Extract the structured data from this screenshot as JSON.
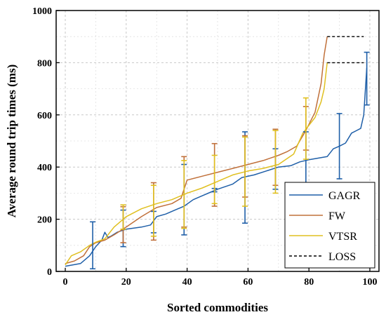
{
  "chart_data": {
    "type": "line",
    "title": "",
    "xlabel": "Sorted commodities",
    "ylabel": "Average round trip times (ms)",
    "xlim": [
      -3,
      103
    ],
    "ylim": [
      0,
      1000
    ],
    "xticks": [
      "0",
      "20",
      "40",
      "60",
      "80",
      "100"
    ],
    "xtick_values": [
      0,
      20,
      40,
      60,
      80,
      100
    ],
    "yticks": [
      "0",
      "200",
      "400",
      "600",
      "800",
      "1000"
    ],
    "ytick_values": [
      0,
      200,
      400,
      600,
      800,
      1000
    ],
    "grid": true,
    "legend_position": "bottom-right",
    "series": [
      {
        "name": "GAGR",
        "color": "#1f5fa8",
        "points": [
          [
            0,
            20
          ],
          [
            5,
            30
          ],
          [
            8,
            60
          ],
          [
            10,
            95
          ],
          [
            12,
            120
          ],
          [
            13,
            150
          ],
          [
            14,
            130
          ],
          [
            15,
            135
          ],
          [
            17,
            150
          ],
          [
            20,
            162
          ],
          [
            25,
            170
          ],
          [
            28,
            178
          ],
          [
            30,
            210
          ],
          [
            33,
            220
          ],
          [
            36,
            235
          ],
          [
            39,
            250
          ],
          [
            42,
            275
          ],
          [
            45,
            290
          ],
          [
            48,
            305
          ],
          [
            50,
            315
          ],
          [
            55,
            335
          ],
          [
            58,
            360
          ],
          [
            62,
            370
          ],
          [
            66,
            385
          ],
          [
            70,
            400
          ],
          [
            74,
            405
          ],
          [
            77,
            420
          ],
          [
            80,
            428
          ],
          [
            84,
            436
          ],
          [
            86,
            440
          ],
          [
            88,
            470
          ],
          [
            90,
            480
          ],
          [
            92,
            492
          ],
          [
            94,
            530
          ],
          [
            97,
            548
          ],
          [
            98,
            600
          ],
          [
            99,
            780
          ]
        ],
        "errorbars": [
          [
            9,
            100,
            10,
            190
          ],
          [
            19,
            160,
            95,
            235
          ],
          [
            29,
            180,
            148,
            230
          ],
          [
            39,
            260,
            140,
            410
          ],
          [
            49,
            310,
            305,
            318
          ],
          [
            59,
            360,
            185,
            535
          ],
          [
            69,
            395,
            315,
            470
          ],
          [
            79,
            425,
            330,
            535
          ],
          [
            90,
            480,
            355,
            605
          ],
          [
            99,
            740,
            638,
            840
          ]
        ]
      },
      {
        "name": "FW",
        "color": "#c0703a",
        "points": [
          [
            0,
            30
          ],
          [
            3,
            40
          ],
          [
            6,
            60
          ],
          [
            8,
            95
          ],
          [
            10,
            110
          ],
          [
            13,
            120
          ],
          [
            16,
            140
          ],
          [
            20,
            170
          ],
          [
            25,
            210
          ],
          [
            30,
            245
          ],
          [
            35,
            260
          ],
          [
            38,
            280
          ],
          [
            40,
            350
          ],
          [
            45,
            365
          ],
          [
            50,
            380
          ],
          [
            55,
            395
          ],
          [
            60,
            410
          ],
          [
            65,
            425
          ],
          [
            70,
            445
          ],
          [
            73,
            460
          ],
          [
            76,
            480
          ],
          [
            79,
            540
          ],
          [
            82,
            610
          ],
          [
            84,
            720
          ],
          [
            85,
            830
          ],
          [
            86,
            900
          ]
        ],
        "errorbars": [
          [
            19,
            185,
            110,
            248
          ],
          [
            29,
            235,
            120,
            340
          ],
          [
            39,
            300,
            170,
            440
          ],
          [
            49,
            370,
            250,
            490
          ],
          [
            59,
            405,
            285,
            520
          ],
          [
            69,
            440,
            330,
            545
          ],
          [
            79,
            525,
            465,
            632
          ]
        ]
      },
      {
        "name": "VTSR",
        "color": "#e0c020",
        "points": [
          [
            0,
            25
          ],
          [
            2,
            60
          ],
          [
            5,
            75
          ],
          [
            8,
            100
          ],
          [
            10,
            112
          ],
          [
            13,
            125
          ],
          [
            16,
            170
          ],
          [
            20,
            210
          ],
          [
            25,
            240
          ],
          [
            30,
            260
          ],
          [
            35,
            275
          ],
          [
            40,
            300
          ],
          [
            45,
            320
          ],
          [
            50,
            345
          ],
          [
            55,
            370
          ],
          [
            60,
            385
          ],
          [
            65,
            395
          ],
          [
            70,
            410
          ],
          [
            75,
            450
          ],
          [
            78,
            530
          ],
          [
            80,
            560
          ],
          [
            82,
            590
          ],
          [
            84,
            650
          ],
          [
            85,
            700
          ],
          [
            86,
            800
          ]
        ],
        "errorbars": [
          [
            19,
            205,
            162,
            255
          ],
          [
            29,
            250,
            135,
            330
          ],
          [
            39,
            295,
            165,
            425
          ],
          [
            49,
            345,
            260,
            445
          ],
          [
            59,
            385,
            250,
            515
          ],
          [
            69,
            410,
            300,
            540
          ],
          [
            79,
            550,
            430,
            665
          ]
        ]
      },
      {
        "name": "LOSS",
        "color": "#000000",
        "dashed": true,
        "segments": [
          [
            [
              86,
              900
            ],
            [
              98,
              900
            ]
          ],
          [
            [
              86,
              800
            ],
            [
              98,
              800
            ]
          ]
        ]
      }
    ]
  }
}
